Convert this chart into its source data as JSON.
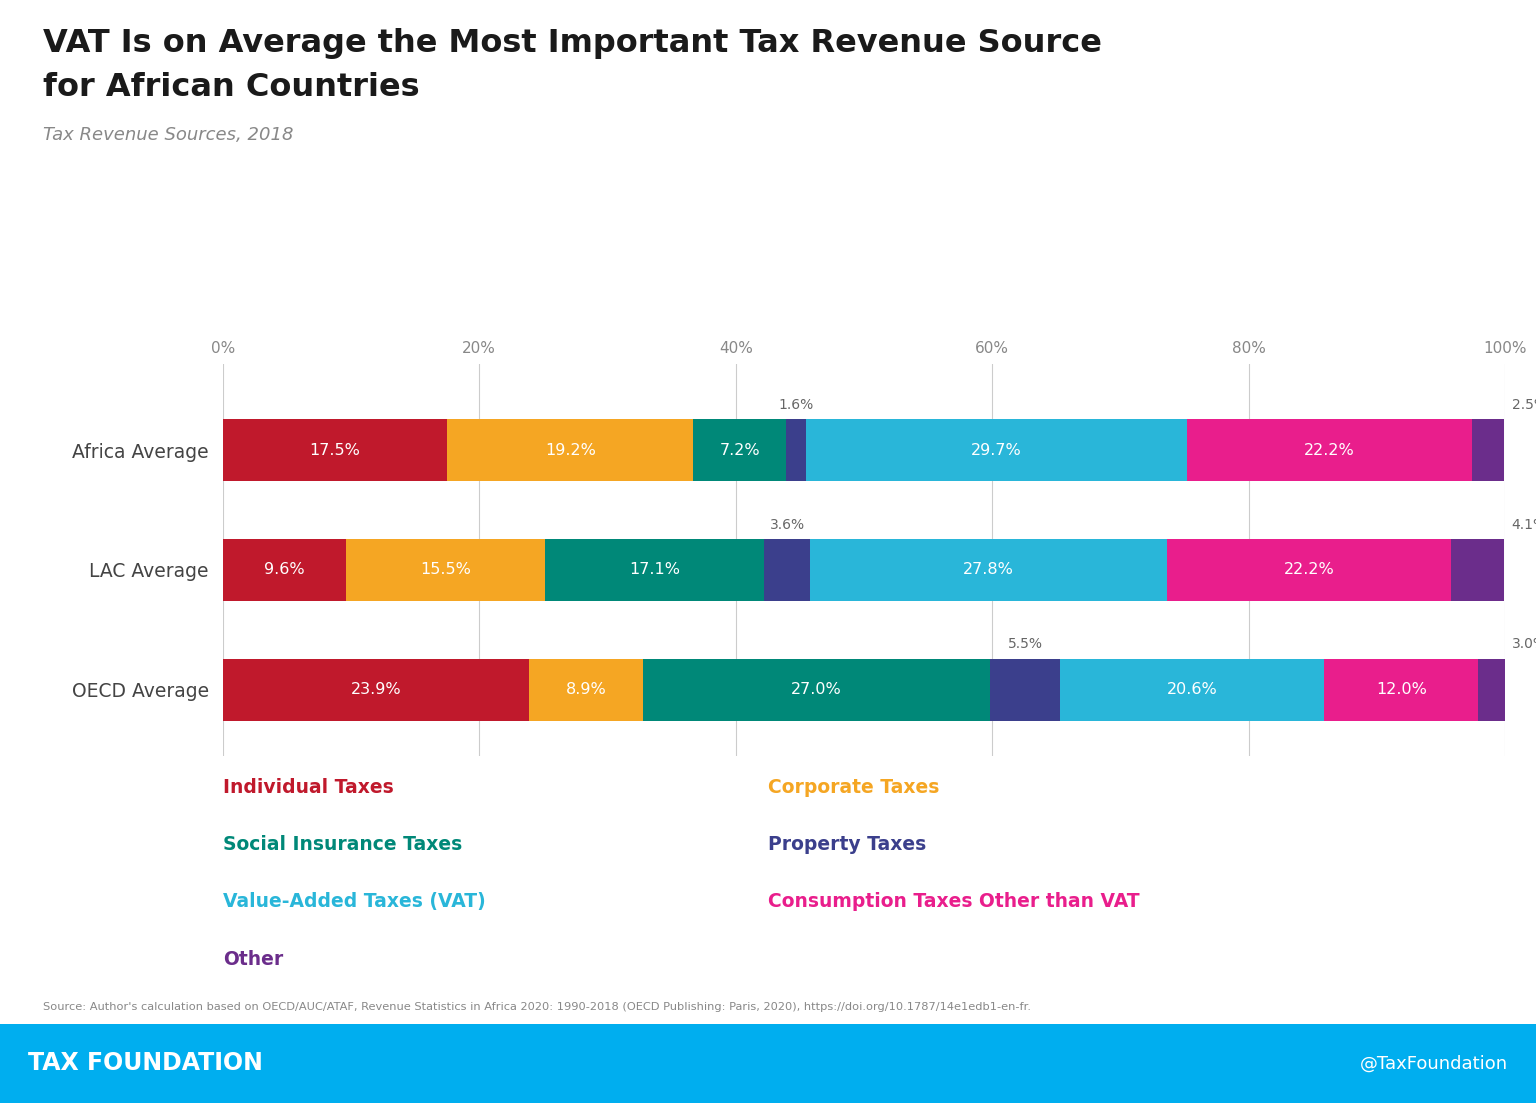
{
  "title_line1": "VAT Is on Average the Most Important Tax Revenue Source",
  "title_line2": "for African Countries",
  "subtitle": "Tax Revenue Sources, 2018",
  "categories": [
    "Africa Average",
    "LAC Average",
    "OECD Average"
  ],
  "segments": {
    "Individual Taxes": [
      17.5,
      9.6,
      23.9
    ],
    "Corporate Taxes": [
      19.2,
      15.5,
      8.9
    ],
    "Social Insurance Taxes": [
      7.2,
      17.1,
      27.0
    ],
    "Property Taxes": [
      1.6,
      3.6,
      5.5
    ],
    "Value-Added Taxes (VAT)": [
      29.7,
      27.8,
      20.6
    ],
    "Consumption Taxes Other than VAT": [
      22.2,
      22.2,
      12.0
    ],
    "Other": [
      2.5,
      4.1,
      3.0
    ]
  },
  "colors": {
    "Individual Taxes": "#C0192C",
    "Corporate Taxes": "#F5A623",
    "Social Insurance Taxes": "#008878",
    "Property Taxes": "#3B3F8C",
    "Value-Added Taxes (VAT)": "#29B6D9",
    "Consumption Taxes Other than VAT": "#E91E8C",
    "Other": "#6B2D8B"
  },
  "source_text": "Source: Author's calculation based on OECD/AUC/ATAF, Revenue Statistics in Africa 2020: 1990-2018 (OECD Publishing: Paris, 2020), https://doi.org/10.1787/14e1edb1-en-fr.",
  "footer_left": "TAX FOUNDATION",
  "footer_right": "@TaxFoundation",
  "footer_bg": "#00AEEF",
  "background_color": "#FFFFFF",
  "legend_left": [
    [
      "Individual Taxes",
      "#C0192C"
    ],
    [
      "Social Insurance Taxes",
      "#008878"
    ],
    [
      "Value-Added Taxes (VAT)",
      "#29B6D9"
    ],
    [
      "Other",
      "#6B2D8B"
    ]
  ],
  "legend_right": [
    [
      "Corporate Taxes",
      "#F5A623"
    ],
    [
      "Property Taxes",
      "#3B3F8C"
    ],
    [
      "Consumption Taxes Other than VAT",
      "#E91E8C"
    ]
  ]
}
